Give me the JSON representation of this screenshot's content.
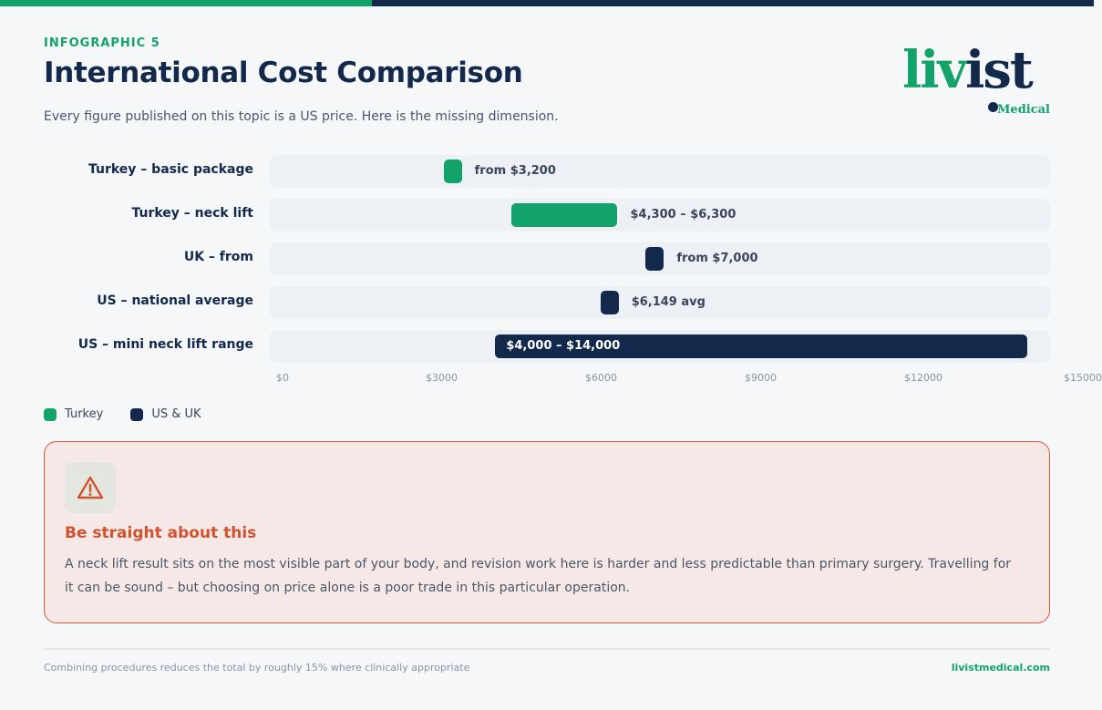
{
  "header": {
    "eyebrow": "INFOGRAPHIC 5",
    "title": "International Cost Comparison",
    "subtitle": "Every figure published on this topic is a US price. Here is the missing dimension."
  },
  "logo": {
    "liv": "liv",
    "ist": "ist",
    "sub": "Medical"
  },
  "colors": {
    "turkey": "#12a36b",
    "usuk": "#13294b",
    "warning": "#d0532f"
  },
  "chart_data": {
    "type": "bar",
    "orientation": "horizontal-range",
    "xlim": [
      0,
      15000
    ],
    "ticks": [
      "$0",
      "$3000",
      "$6000",
      "$9000",
      "$12000",
      "$15000"
    ],
    "tick_values": [
      0,
      3000,
      6000,
      9000,
      12000,
      15000
    ],
    "rows": [
      {
        "label": "Turkey – basic package",
        "group": "turkey",
        "min": 3200,
        "max": 3200,
        "value_label": "from $3,200",
        "label_inside": false
      },
      {
        "label": "Turkey – neck lift",
        "group": "turkey",
        "min": 4300,
        "max": 6300,
        "value_label": "$4,300 – $6,300",
        "label_inside": false
      },
      {
        "label": "UK – from",
        "group": "usuk",
        "min": 7000,
        "max": 7000,
        "value_label": "from $7,000",
        "label_inside": false
      },
      {
        "label": "US – national average",
        "group": "usuk",
        "min": 6149,
        "max": 6149,
        "value_label": "$6,149 avg",
        "label_inside": false
      },
      {
        "label": "US – mini neck lift range",
        "group": "usuk",
        "min": 4000,
        "max": 14000,
        "value_label": "$4,000 – $14,000",
        "label_inside": true
      }
    ],
    "legend": [
      {
        "name": "Turkey",
        "group": "turkey"
      },
      {
        "name": "US & UK",
        "group": "usuk"
      }
    ],
    "legend_position": "bottom-left"
  },
  "warning": {
    "icon": "warning-triangle-icon",
    "heading": "Be straight about this",
    "body": "A neck lift result sits on the most visible part of your body, and revision work here is harder and less predictable than primary surgery. Travelling for it can be sound – but choosing on price alone is a poor trade in this particular operation."
  },
  "footer": {
    "note": "Combining procedures reduces the total by roughly 15% where clinically appropriate",
    "site": "livistmedical.com"
  }
}
